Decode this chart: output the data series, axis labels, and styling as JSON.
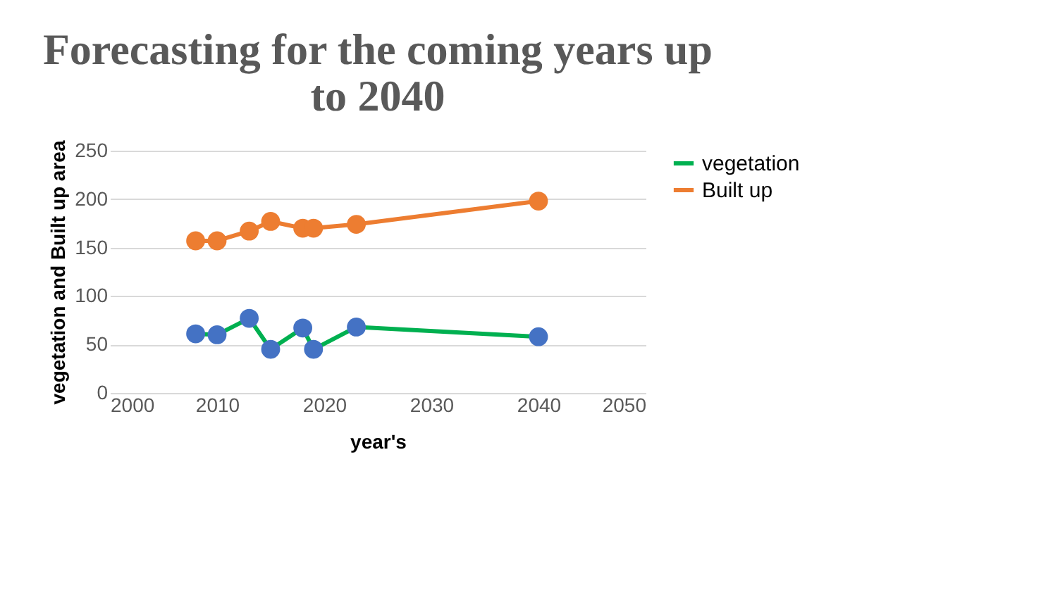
{
  "chart_data": {
    "type": "line",
    "title": "Forecasting for the coming years up to 2040",
    "xlabel": "year's",
    "ylabel": "vegetation and Built up area",
    "x": [
      2008,
      2010,
      2013,
      2015,
      2018,
      2019,
      2023,
      2040
    ],
    "series": [
      {
        "name": "vegetation",
        "color": "#00b050",
        "colors": [
          "#4472c4",
          "#4472c4",
          "#4472c4",
          "#4472c4",
          "#4472c4",
          "#4472c4",
          "#4472c4",
          "#4472c4"
        ],
        "values": [
          61,
          60,
          77,
          45,
          67,
          45,
          68,
          58
        ]
      },
      {
        "name": "Built up",
        "color": "#ed7d31",
        "colors": [
          "#ed7d31",
          "#ed7d31",
          "#ed7d31",
          "#ed7d31",
          "#ed7d31",
          "#ed7d31",
          "#ed7d31",
          "#ed7d31"
        ],
        "values": [
          157,
          157,
          167,
          177,
          170,
          170,
          174,
          198
        ]
      }
    ],
    "xlim": [
      2000,
      2050
    ],
    "xticks": [
      2000,
      2010,
      2020,
      2030,
      2040,
      2050
    ],
    "ylim": [
      0,
      250
    ],
    "yticks": [
      0,
      50,
      100,
      150,
      200,
      250
    ],
    "grid": "y",
    "legend": "right",
    "marker": "circle",
    "line_style": "solid"
  }
}
